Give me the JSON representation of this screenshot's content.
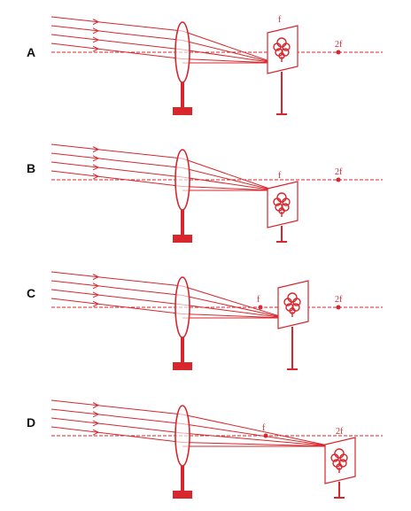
{
  "colors": {
    "ink": "#d7262c",
    "label": "#111111",
    "background": "#ffffff"
  },
  "panels": [
    {
      "label": "A",
      "screen_position": "at-f",
      "image_side": "above",
      "points": [
        {
          "label": "f",
          "shown": false
        },
        {
          "label": "2f",
          "shown": true
        }
      ],
      "screen_label": "f"
    },
    {
      "label": "B",
      "screen_position": "at-f",
      "image_side": "below",
      "points": [
        {
          "label": "f",
          "shown": false
        },
        {
          "label": "2f",
          "shown": true
        }
      ],
      "screen_label": "f"
    },
    {
      "label": "C",
      "screen_position": "between-f-and-2f",
      "image_side": "above",
      "points": [
        {
          "label": "f",
          "shown": true
        },
        {
          "label": "2f",
          "shown": true
        }
      ],
      "screen_label": ""
    },
    {
      "label": "D",
      "screen_position": "at-2f",
      "image_side": "below",
      "points": [
        {
          "label": "f",
          "shown": true
        },
        {
          "label": "2f",
          "shown": false
        }
      ],
      "screen_label": "2f"
    }
  ]
}
